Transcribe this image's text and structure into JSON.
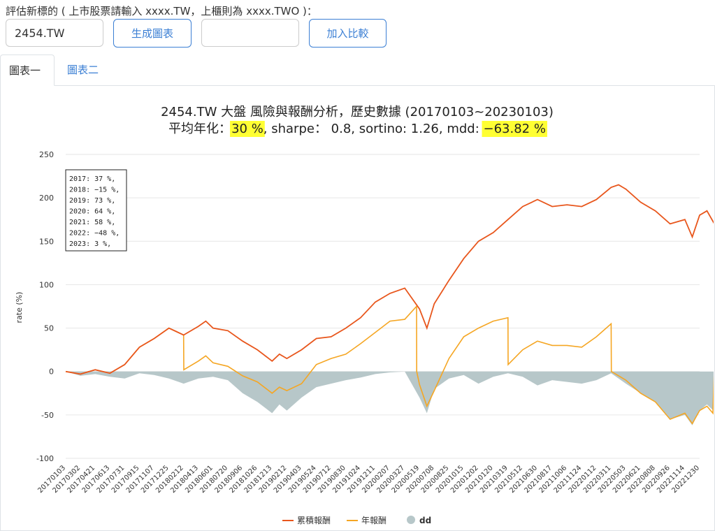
{
  "form": {
    "prompt": "評估新標的 ( 上市股票請輸入 xxxx.TW，上櫃則為 xxxx.TWO )：",
    "ticker_value": "2454.TW",
    "generate_label": "生成圖表",
    "compare_value": "",
    "add_compare_label": "加入比較"
  },
  "tabs": [
    {
      "label": "圖表一",
      "active": true
    },
    {
      "label": "圖表二",
      "active": false
    }
  ],
  "colors": {
    "cumulative": "#e8561c",
    "annual": "#f5a623",
    "dd": "#b7c7c9",
    "highlight": "#ffff33",
    "link": "#3b7fd4"
  },
  "chart_data": {
    "type": "line",
    "title": "2454.TW 大盤 風險與報酬分析，歷史數據 (20170103~20230103)",
    "subtitle_parts": [
      "平均年化：",
      "30 %",
      ", sharpe：  0.8, sortino: 1.26, mdd: ",
      "−63.82 %"
    ],
    "ylabel": "rate (%)",
    "ylim": [
      -100,
      250
    ],
    "yticks": [
      -100,
      -50,
      0,
      50,
      100,
      150,
      200,
      250
    ],
    "x_ticks": [
      "20170103",
      "20170302",
      "20170421",
      "20170613",
      "20170731",
      "20170915",
      "20171107",
      "20171225",
      "20180212",
      "20180413",
      "20180601",
      "20180720",
      "20180906",
      "20181026",
      "20181213",
      "20190212",
      "20190403",
      "20190524",
      "20190712",
      "20190830",
      "20191024",
      "20191211",
      "20200207",
      "20200327",
      "20200519",
      "20200708",
      "20200825",
      "20201015",
      "20201202",
      "20210120",
      "20210319",
      "20210512",
      "20210630",
      "20210817",
      "20211006",
      "20211124",
      "20220112",
      "20220311",
      "20220503",
      "20220621",
      "20220808",
      "20220926",
      "20221114",
      "20221230"
    ],
    "annual_box": [
      "2017: 37 %,",
      "2018: −15 %,",
      "2019: 73 %,",
      "2020: 64 %,",
      "2021: 58 %,",
      "2022: −48 %,",
      "2023: 3 %,"
    ],
    "series": [
      {
        "name": "累積報酬",
        "key": "cum",
        "points": [
          [
            0,
            0
          ],
          [
            1,
            -3
          ],
          [
            2,
            2
          ],
          [
            3,
            -2
          ],
          [
            4,
            8
          ],
          [
            5,
            28
          ],
          [
            6,
            38
          ],
          [
            7,
            50
          ],
          [
            7.5,
            46
          ],
          [
            8,
            42
          ],
          [
            9,
            52
          ],
          [
            9.5,
            58
          ],
          [
            10,
            50
          ],
          [
            11,
            47
          ],
          [
            12,
            35
          ],
          [
            13,
            25
          ],
          [
            14,
            12
          ],
          [
            14.5,
            20
          ],
          [
            15,
            15
          ],
          [
            16,
            25
          ],
          [
            17,
            38
          ],
          [
            18,
            40
          ],
          [
            19,
            50
          ],
          [
            20,
            62
          ],
          [
            21,
            80
          ],
          [
            22,
            90
          ],
          [
            23,
            96
          ],
          [
            24,
            72
          ],
          [
            24.5,
            50
          ],
          [
            25,
            78
          ],
          [
            26,
            105
          ],
          [
            27,
            130
          ],
          [
            28,
            150
          ],
          [
            29,
            160
          ],
          [
            30,
            175
          ],
          [
            31,
            190
          ],
          [
            32,
            198
          ],
          [
            33,
            190
          ],
          [
            34,
            192
          ],
          [
            35,
            190
          ],
          [
            36,
            198
          ],
          [
            37,
            212
          ],
          [
            37.5,
            215
          ],
          [
            38,
            210
          ],
          [
            39,
            195
          ],
          [
            40,
            185
          ],
          [
            41,
            170
          ],
          [
            42,
            175
          ],
          [
            42.5,
            155
          ],
          [
            43,
            180
          ],
          [
            43.5,
            185
          ],
          [
            44,
            170
          ]
        ]
      },
      {
        "name": "年報酬",
        "key": "ann",
        "points": [
          [
            0,
            0
          ],
          [
            1,
            -3
          ],
          [
            2,
            2
          ],
          [
            3,
            -2
          ],
          [
            4,
            8
          ],
          [
            5,
            28
          ],
          [
            6,
            38
          ],
          [
            7,
            50
          ],
          [
            8,
            42
          ],
          [
            8.01,
            2
          ],
          [
            9,
            12
          ],
          [
            9.5,
            18
          ],
          [
            10,
            10
          ],
          [
            11,
            6
          ],
          [
            12,
            -5
          ],
          [
            13,
            -12
          ],
          [
            14,
            -25
          ],
          [
            14.5,
            -18
          ],
          [
            15,
            -22
          ],
          [
            16,
            -14
          ],
          [
            17,
            8
          ],
          [
            18,
            15
          ],
          [
            19,
            20
          ],
          [
            20,
            32
          ],
          [
            21,
            45
          ],
          [
            22,
            58
          ],
          [
            23,
            60
          ],
          [
            23.8,
            75
          ],
          [
            23.81,
            0
          ],
          [
            24,
            -15
          ],
          [
            24.5,
            -40
          ],
          [
            25,
            -22
          ],
          [
            26,
            15
          ],
          [
            27,
            40
          ],
          [
            28,
            50
          ],
          [
            29,
            58
          ],
          [
            30,
            62
          ],
          [
            30.01,
            8
          ],
          [
            31,
            25
          ],
          [
            32,
            35
          ],
          [
            33,
            30
          ],
          [
            34,
            30
          ],
          [
            35,
            28
          ],
          [
            36,
            40
          ],
          [
            37,
            55
          ],
          [
            37.01,
            0
          ],
          [
            38,
            -10
          ],
          [
            39,
            -25
          ],
          [
            40,
            -35
          ],
          [
            41,
            -55
          ],
          [
            42,
            -48
          ],
          [
            42.5,
            -60
          ],
          [
            43,
            -45
          ],
          [
            43.5,
            -40
          ],
          [
            43.9,
            -48
          ],
          [
            44,
            3
          ]
        ]
      },
      {
        "name": "dd",
        "key": "dd",
        "points": [
          [
            0,
            0
          ],
          [
            1,
            -5
          ],
          [
            2,
            -3
          ],
          [
            3,
            -6
          ],
          [
            4,
            -8
          ],
          [
            5,
            -2
          ],
          [
            6,
            -4
          ],
          [
            7,
            -8
          ],
          [
            8,
            -14
          ],
          [
            9,
            -8
          ],
          [
            10,
            -6
          ],
          [
            11,
            -10
          ],
          [
            12,
            -25
          ],
          [
            13,
            -35
          ],
          [
            14,
            -48
          ],
          [
            14.5,
            -38
          ],
          [
            15,
            -45
          ],
          [
            16,
            -30
          ],
          [
            17,
            -18
          ],
          [
            18,
            -14
          ],
          [
            19,
            -10
          ],
          [
            20,
            -7
          ],
          [
            21,
            -3
          ],
          [
            22,
            -1
          ],
          [
            23,
            0
          ],
          [
            24,
            -30
          ],
          [
            24.5,
            -48
          ],
          [
            25,
            -20
          ],
          [
            26,
            -8
          ],
          [
            27,
            -4
          ],
          [
            28,
            -14
          ],
          [
            29,
            -6
          ],
          [
            30,
            -2
          ],
          [
            31,
            -6
          ],
          [
            32,
            -16
          ],
          [
            33,
            -10
          ],
          [
            34,
            -12
          ],
          [
            35,
            -14
          ],
          [
            36,
            -10
          ],
          [
            37,
            -2
          ],
          [
            38,
            -14
          ],
          [
            39,
            -25
          ],
          [
            40,
            -35
          ],
          [
            41,
            -55
          ],
          [
            42,
            -50
          ],
          [
            42.5,
            -62
          ],
          [
            43,
            -45
          ],
          [
            43.5,
            -38
          ],
          [
            44,
            -46
          ]
        ]
      }
    ]
  }
}
